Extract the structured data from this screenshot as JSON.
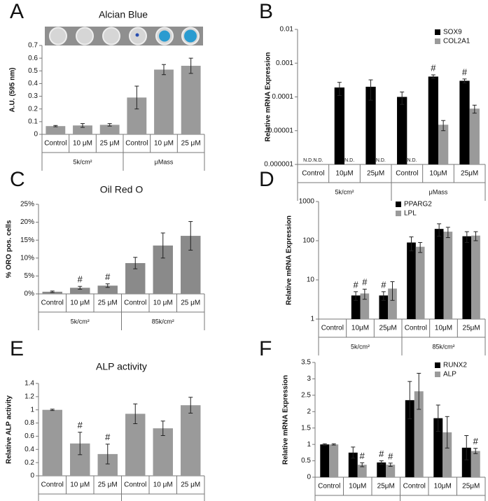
{
  "chart_data": [
    {
      "type": "bar",
      "panel": "A",
      "title": "Alcian Blue",
      "ylabel": "A.U. (595 nm)",
      "categories": [
        "Control",
        "10 μM",
        "25 μM",
        "Control",
        "10 μM",
        "25 μM"
      ],
      "groups": [
        "5k/cm²",
        "μMass"
      ],
      "values": [
        0.065,
        0.07,
        0.075,
        0.29,
        0.51,
        0.54
      ],
      "errors": [
        0.005,
        0.015,
        0.01,
        0.09,
        0.04,
        0.06
      ],
      "color": "#9a9a9a",
      "ylim": [
        0,
        0.7
      ],
      "yticks": [
        0,
        0.1,
        0.2,
        0.3,
        0.4,
        0.5,
        0.6,
        0.7
      ],
      "log": false
    },
    {
      "type": "bar",
      "panel": "B",
      "ylabel": "Relative mRNA Expression",
      "categories": [
        "Control",
        "10μM",
        "25μM",
        "Control",
        "10μM",
        "25μM"
      ],
      "groups": [
        "5k/cm²",
        "μMass"
      ],
      "series": [
        {
          "name": "SOX9",
          "color": "#000000",
          "values": [
            null,
            0.00019,
            0.0002,
            0.0001,
            0.0004,
            0.0003
          ],
          "errors": [
            null,
            8e-05,
            0.00012,
            4e-05,
            5e-05,
            4e-05
          ],
          "value_labels": [
            "N.D.",
            null,
            null,
            null,
            null,
            null
          ],
          "annotations": [
            null,
            null,
            null,
            null,
            "#",
            "#"
          ]
        },
        {
          "name": "COL2A1",
          "color": "#9a9a9a",
          "values": [
            null,
            null,
            null,
            null,
            1.5e-05,
            4.5e-05
          ],
          "errors": [
            null,
            null,
            null,
            null,
            5e-06,
            1.2e-05
          ],
          "value_labels": [
            "N.D.",
            "N.D.",
            "N.D.",
            "N.D.",
            null,
            null
          ]
        }
      ],
      "ylim": [
        1e-06,
        0.01
      ],
      "yticks": [
        1e-06,
        1e-05,
        0.0001,
        0.001,
        0.01
      ],
      "log": true,
      "legend": "upper right"
    },
    {
      "type": "bar",
      "panel": "C",
      "title": "Oil Red O",
      "ylabel": "% ORO pos. cells",
      "categories": [
        "Control",
        "10 μM",
        "25 μM",
        "Control",
        "10 μM",
        "25 μM"
      ],
      "groups": [
        "5k/cm²",
        "85k/cm²"
      ],
      "values": [
        0.6,
        1.7,
        2.3,
        8.6,
        13.5,
        16.2
      ],
      "errors": [
        0.2,
        0.4,
        0.5,
        1.6,
        3.5,
        4
      ],
      "annotations": [
        null,
        "#",
        "#",
        null,
        null,
        null
      ],
      "color": "#8a8a8a",
      "ylim": [
        0,
        25
      ],
      "yticks": [
        {
          "value": 0,
          "label": "0%"
        },
        {
          "value": 5,
          "label": "5%"
        },
        {
          "value": 10,
          "label": "10%"
        },
        {
          "value": 15,
          "label": "15%"
        },
        {
          "value": 20,
          "label": "20%"
        },
        {
          "value": 25,
          "label": "25%"
        }
      ],
      "log": false
    },
    {
      "type": "bar",
      "panel": "D",
      "ylabel": "Relative mRNA Expression",
      "categories": [
        "Control",
        "10μM",
        "25μM",
        "Control",
        "10μM",
        "25μM"
      ],
      "groups": [
        "5k/cm²",
        "85k/cm²"
      ],
      "series": [
        {
          "name": "PPARG2",
          "color": "#000000",
          "values": [
            null,
            4,
            4,
            90,
            200,
            130
          ],
          "errors": [
            null,
            1,
            1,
            35,
            70,
            40
          ],
          "annotations": [
            null,
            "#",
            "#",
            null,
            null,
            null
          ]
        },
        {
          "name": "LPL",
          "color": "#9a9a9a",
          "values": [
            null,
            4.5,
            6,
            70,
            170,
            135
          ],
          "errors": [
            null,
            1.3,
            3,
            20,
            50,
            35
          ],
          "annotations": [
            null,
            "#",
            null,
            null,
            null,
            null
          ]
        }
      ],
      "ylim": [
        1,
        1000
      ],
      "yticks": [
        1,
        10,
        100,
        1000
      ],
      "log": true,
      "legend": "upper left"
    },
    {
      "type": "bar",
      "panel": "E",
      "title": "ALP activity",
      "ylabel": "Relative ALP activity",
      "categories": [
        "Control",
        "10 μM",
        "25 μM",
        "Control",
        "10 μM",
        "25 μM"
      ],
      "groups": [
        "5k/cm²",
        "85k/cm²"
      ],
      "values": [
        1.0,
        0.49,
        0.33,
        0.94,
        0.72,
        1.07
      ],
      "errors": [
        0.01,
        0.17,
        0.15,
        0.15,
        0.11,
        0.12
      ],
      "annotations": [
        null,
        "#",
        "#",
        null,
        null,
        null
      ],
      "color": "#9a9a9a",
      "ylim": [
        0,
        1.4
      ],
      "yticks": [
        0,
        0.2,
        0.4,
        0.6,
        0.8,
        1,
        1.2,
        1.4
      ],
      "log": false
    },
    {
      "type": "bar",
      "panel": "F",
      "ylabel": "Relative mRNA Expression",
      "categories": [
        "Control",
        "10μM",
        "25μM",
        "Control",
        "10μM",
        "25μM"
      ],
      "groups": [
        "5k/cm²",
        "85k/cm²"
      ],
      "series": [
        {
          "name": "RUNX2",
          "color": "#000000",
          "values": [
            1.0,
            0.75,
            0.45,
            2.35,
            1.8,
            0.9
          ],
          "errors": [
            0.02,
            0.17,
            0.05,
            0.57,
            0.4,
            0.37
          ],
          "annotations": [
            null,
            null,
            "#",
            null,
            null,
            null
          ]
        },
        {
          "name": "ALP",
          "color": "#9a9a9a",
          "values": [
            1.0,
            0.38,
            0.38,
            2.62,
            1.37,
            0.8
          ],
          "errors": [
            0.02,
            0.06,
            0.05,
            0.55,
            0.48,
            0.08
          ],
          "annotations": [
            null,
            "#",
            "#",
            null,
            null,
            "#"
          ]
        }
      ],
      "ylim": [
        0,
        3.5
      ],
      "yticks": [
        0,
        0.5,
        1,
        1.5,
        2,
        2.5,
        3,
        3.5
      ],
      "log": false,
      "legend": "upper right"
    }
  ]
}
